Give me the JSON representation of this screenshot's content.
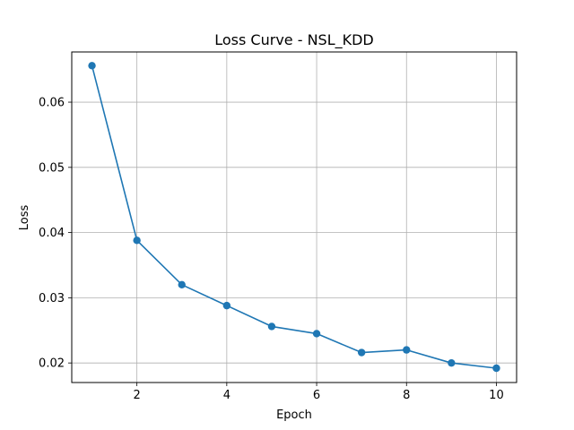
{
  "chart_data": {
    "type": "line",
    "title": "Loss Curve - NSL_KDD",
    "xlabel": "Epoch",
    "ylabel": "Loss",
    "grid": true,
    "xlim": [
      0.55,
      10.45
    ],
    "ylim": [
      0.017,
      0.0677
    ],
    "xticks": [
      2,
      4,
      6,
      8,
      10
    ],
    "xtick_labels": [
      "2",
      "4",
      "6",
      "8",
      "10"
    ],
    "yticks": [
      0.02,
      0.03,
      0.04,
      0.05,
      0.06
    ],
    "ytick_labels": [
      "0.02",
      "0.03",
      "0.04",
      "0.05",
      "0.06"
    ],
    "series": [
      {
        "color": "#1f77b4",
        "marker": "circle",
        "x": [
          1,
          2,
          3,
          4,
          5,
          6,
          7,
          8,
          9,
          10
        ],
        "values": [
          0.0656,
          0.0388,
          0.032,
          0.0288,
          0.0256,
          0.0245,
          0.0216,
          0.022,
          0.02,
          0.0192
        ]
      }
    ]
  }
}
